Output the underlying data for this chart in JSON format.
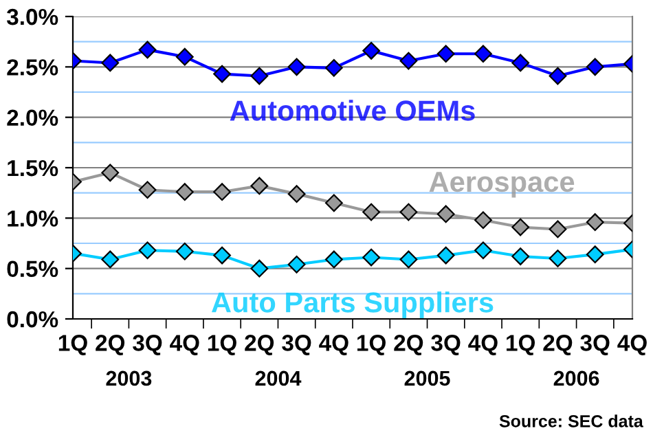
{
  "chart_data": {
    "type": "line",
    "categories": [
      "1Q",
      "2Q",
      "3Q",
      "4Q",
      "1Q",
      "2Q",
      "3Q",
      "4Q",
      "1Q",
      "2Q",
      "3Q",
      "4Q",
      "1Q",
      "2Q",
      "3Q",
      "4Q"
    ],
    "series": [
      {
        "name": "Automotive OEMs",
        "color": "#0000ff",
        "values": [
          2.56,
          2.54,
          2.67,
          2.6,
          2.43,
          2.41,
          2.5,
          2.49,
          2.66,
          2.56,
          2.63,
          2.63,
          2.54,
          2.41,
          2.5,
          2.53
        ]
      },
      {
        "name": "Aerospace",
        "color": "#999999",
        "values": [
          1.36,
          1.45,
          1.28,
          1.26,
          1.26,
          1.32,
          1.24,
          1.15,
          1.06,
          1.06,
          1.04,
          0.98,
          0.91,
          0.89,
          0.96,
          0.95
        ]
      },
      {
        "name": "Auto Parts Suppliers",
        "color": "#00ccff",
        "values": [
          0.65,
          0.59,
          0.68,
          0.67,
          0.63,
          0.5,
          0.54,
          0.59,
          0.61,
          0.59,
          0.63,
          0.68,
          0.62,
          0.6,
          0.64,
          0.69
        ]
      }
    ],
    "ylim": [
      0,
      3.0
    ],
    "yticks": [
      {
        "value": 0,
        "label": "0.0%"
      },
      {
        "value": 0.25,
        "label": null
      },
      {
        "value": 0.5,
        "label": "0.5%"
      },
      {
        "value": 0.75,
        "label": null
      },
      {
        "value": 1.0,
        "label": "1.0%"
      },
      {
        "value": 1.25,
        "label": null
      },
      {
        "value": 1.5,
        "label": "1.5%"
      },
      {
        "value": 1.75,
        "label": null
      },
      {
        "value": 2.0,
        "label": "2.0%"
      },
      {
        "value": 2.25,
        "label": null
      },
      {
        "value": 2.5,
        "label": "2.5%"
      },
      {
        "value": 2.75,
        "label": null
      },
      {
        "value": 3.0,
        "label": "3.0%"
      }
    ],
    "grid": "y",
    "marker": "diamond",
    "line_style": "solid",
    "annotations": [
      "2003",
      "2004",
      "2005",
      "2006",
      "Source: SEC data"
    ]
  }
}
